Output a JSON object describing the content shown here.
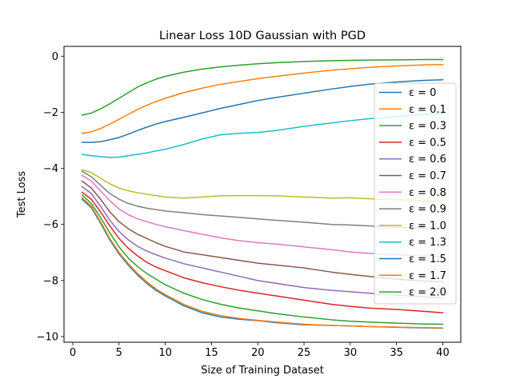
{
  "chart_data": {
    "type": "line",
    "title": "Linear Loss 10D Gaussian with PGD",
    "xlabel": "Size of Training Dataset",
    "ylabel": "Test Loss",
    "xlim": [
      -0.95,
      41.95
    ],
    "ylim": [
      -10.2,
      0.35
    ],
    "xticks": [
      0,
      5,
      10,
      15,
      20,
      25,
      30,
      35,
      40
    ],
    "xtick_labels": [
      "0",
      "5",
      "10",
      "15",
      "20",
      "25",
      "30",
      "35",
      "40"
    ],
    "yticks": [
      0,
      -2,
      -4,
      -6,
      -8,
      -10
    ],
    "ytick_labels": [
      "0",
      "−2",
      "−4",
      "−6",
      "−8",
      "−10"
    ],
    "grid": false,
    "legend_position": "right",
    "colors": [
      "#1f77b4",
      "#ff7f0e",
      "#2ca02c",
      "#d62728",
      "#9467bd",
      "#8c564b",
      "#e377c2",
      "#7f7f7f",
      "#bcbd22",
      "#17becf",
      "#1f77b4",
      "#ff7f0e",
      "#2ca02c"
    ],
    "series": [
      {
        "name": "ε = 0",
        "x": [
          1,
          2,
          3,
          4,
          5,
          6,
          7,
          8,
          9,
          10,
          12,
          14,
          16,
          18,
          20,
          22,
          25,
          28,
          30,
          32,
          35,
          38,
          40
        ],
        "y": [
          -5.1,
          -5.4,
          -5.95,
          -6.55,
          -7.05,
          -7.45,
          -7.8,
          -8.1,
          -8.35,
          -8.55,
          -8.9,
          -9.15,
          -9.3,
          -9.38,
          -9.43,
          -9.5,
          -9.58,
          -9.6,
          -9.62,
          -9.64,
          -9.67,
          -9.69,
          -9.7
        ]
      },
      {
        "name": "ε = 0.1",
        "x": [
          1,
          2,
          3,
          4,
          5,
          6,
          7,
          8,
          9,
          10,
          12,
          14,
          16,
          18,
          20,
          22,
          25,
          28,
          30,
          32,
          35,
          38,
          40
        ],
        "y": [
          -5.05,
          -5.35,
          -5.9,
          -6.5,
          -7.0,
          -7.4,
          -7.75,
          -8.05,
          -8.3,
          -8.5,
          -8.85,
          -9.1,
          -9.25,
          -9.35,
          -9.42,
          -9.48,
          -9.56,
          -9.6,
          -9.62,
          -9.64,
          -9.66,
          -9.68,
          -9.69
        ]
      },
      {
        "name": "ε = 0.3",
        "x": [
          1,
          2,
          3,
          4,
          5,
          6,
          7,
          8,
          9,
          10,
          12,
          14,
          16,
          18,
          20,
          22,
          25,
          28,
          30,
          32,
          35,
          38,
          40
        ],
        "y": [
          -4.95,
          -5.25,
          -5.75,
          -6.3,
          -6.8,
          -7.2,
          -7.5,
          -7.75,
          -7.95,
          -8.15,
          -8.45,
          -8.68,
          -8.85,
          -8.98,
          -9.08,
          -9.18,
          -9.3,
          -9.4,
          -9.45,
          -9.48,
          -9.52,
          -9.55,
          -9.56
        ]
      },
      {
        "name": "ε = 0.5",
        "x": [
          1,
          2,
          3,
          4,
          5,
          6,
          7,
          8,
          9,
          10,
          12,
          14,
          16,
          18,
          20,
          22,
          25,
          28,
          30,
          32,
          35,
          38,
          40
        ],
        "y": [
          -4.85,
          -5.1,
          -5.55,
          -6.05,
          -6.5,
          -6.85,
          -7.12,
          -7.35,
          -7.52,
          -7.65,
          -7.9,
          -8.08,
          -8.22,
          -8.35,
          -8.45,
          -8.55,
          -8.7,
          -8.85,
          -8.92,
          -8.98,
          -9.03,
          -9.1,
          -9.15
        ]
      },
      {
        "name": "ε = 0.6",
        "x": [
          1,
          2,
          3,
          4,
          5,
          6,
          7,
          8,
          9,
          10,
          12,
          14,
          16,
          18,
          20,
          22,
          25,
          28,
          30,
          32,
          35,
          38,
          40
        ],
        "y": [
          -4.65,
          -4.9,
          -5.35,
          -5.85,
          -6.25,
          -6.55,
          -6.78,
          -6.95,
          -7.08,
          -7.2,
          -7.4,
          -7.55,
          -7.7,
          -7.85,
          -8.0,
          -8.1,
          -8.25,
          -8.35,
          -8.4,
          -8.45,
          -8.52,
          -8.58,
          -8.62
        ]
      },
      {
        "name": "ε = 0.7",
        "x": [
          1,
          2,
          3,
          4,
          5,
          6,
          7,
          8,
          9,
          10,
          12,
          14,
          16,
          18,
          20,
          22,
          25,
          28,
          30,
          32,
          35,
          38,
          40
        ],
        "y": [
          -4.45,
          -4.7,
          -5.1,
          -5.55,
          -5.9,
          -6.15,
          -6.35,
          -6.5,
          -6.65,
          -6.78,
          -6.98,
          -7.08,
          -7.18,
          -7.28,
          -7.38,
          -7.45,
          -7.55,
          -7.7,
          -7.78,
          -7.85,
          -7.95,
          -8.02,
          -8.05
        ]
      },
      {
        "name": "ε = 0.8",
        "x": [
          1,
          2,
          3,
          4,
          5,
          6,
          7,
          8,
          9,
          10,
          12,
          14,
          16,
          18,
          20,
          22,
          25,
          28,
          30,
          32,
          35,
          38,
          40
        ],
        "y": [
          -4.25,
          -4.45,
          -4.8,
          -5.15,
          -5.45,
          -5.65,
          -5.8,
          -5.9,
          -6.0,
          -6.08,
          -6.22,
          -6.35,
          -6.48,
          -6.58,
          -6.65,
          -6.7,
          -6.8,
          -6.9,
          -6.98,
          -7.03,
          -7.08,
          -7.12,
          -7.15
        ]
      },
      {
        "name": "ε = 0.9",
        "x": [
          1,
          2,
          3,
          4,
          5,
          6,
          7,
          8,
          9,
          10,
          12,
          14,
          16,
          18,
          20,
          22,
          25,
          28,
          30,
          32,
          35,
          38,
          40
        ],
        "y": [
          -4.1,
          -4.3,
          -4.6,
          -4.9,
          -5.1,
          -5.25,
          -5.35,
          -5.42,
          -5.47,
          -5.52,
          -5.58,
          -5.65,
          -5.7,
          -5.75,
          -5.8,
          -5.85,
          -5.92,
          -6.0,
          -6.02,
          -6.05,
          -6.1,
          -6.13,
          -6.15
        ]
      },
      {
        "name": "ε = 1.0",
        "x": [
          1,
          2,
          3,
          4,
          5,
          6,
          7,
          8,
          9,
          10,
          12,
          14,
          16,
          18,
          20,
          22,
          25,
          28,
          30,
          32,
          35,
          38,
          40
        ],
        "y": [
          -4.05,
          -4.15,
          -4.35,
          -4.55,
          -4.7,
          -4.8,
          -4.87,
          -4.92,
          -4.97,
          -5.02,
          -5.06,
          -5.02,
          -4.98,
          -4.97,
          -4.97,
          -4.98,
          -5.02,
          -5.06,
          -5.05,
          -5.08,
          -5.12,
          -5.15,
          -5.17
        ]
      },
      {
        "name": "ε = 1.3",
        "x": [
          1,
          2,
          3,
          4,
          5,
          6,
          7,
          8,
          9,
          10,
          12,
          14,
          16,
          18,
          20,
          22,
          25,
          28,
          30,
          32,
          35,
          38,
          40
        ],
        "y": [
          -3.5,
          -3.55,
          -3.58,
          -3.61,
          -3.6,
          -3.55,
          -3.5,
          -3.45,
          -3.38,
          -3.32,
          -3.15,
          -2.95,
          -2.8,
          -2.75,
          -2.72,
          -2.65,
          -2.5,
          -2.38,
          -2.3,
          -2.23,
          -2.15,
          -2.08,
          -2.04
        ]
      },
      {
        "name": "ε = 1.5",
        "x": [
          1,
          2,
          3,
          4,
          5,
          6,
          7,
          8,
          9,
          10,
          12,
          14,
          16,
          18,
          20,
          22,
          25,
          28,
          30,
          32,
          35,
          38,
          40
        ],
        "y": [
          -3.07,
          -3.07,
          -3.05,
          -2.98,
          -2.9,
          -2.78,
          -2.65,
          -2.53,
          -2.42,
          -2.33,
          -2.18,
          -2.02,
          -1.86,
          -1.72,
          -1.58,
          -1.47,
          -1.32,
          -1.17,
          -1.08,
          -1.0,
          -0.92,
          -0.86,
          -0.84
        ]
      },
      {
        "name": "ε = 1.7",
        "x": [
          1,
          2,
          3,
          4,
          5,
          6,
          7,
          8,
          9,
          10,
          12,
          14,
          16,
          18,
          20,
          22,
          25,
          28,
          30,
          32,
          35,
          38,
          40
        ],
        "y": [
          -2.75,
          -2.7,
          -2.58,
          -2.42,
          -2.25,
          -2.07,
          -1.9,
          -1.75,
          -1.62,
          -1.5,
          -1.3,
          -1.14,
          -1.0,
          -0.9,
          -0.8,
          -0.72,
          -0.6,
          -0.5,
          -0.45,
          -0.4,
          -0.35,
          -0.31,
          -0.3
        ]
      },
      {
        "name": "ε = 2.0",
        "x": [
          1,
          2,
          3,
          4,
          5,
          6,
          7,
          8,
          9,
          10,
          12,
          14,
          16,
          18,
          20,
          22,
          25,
          28,
          30,
          32,
          35,
          38,
          40
        ],
        "y": [
          -2.1,
          -2.03,
          -1.88,
          -1.7,
          -1.5,
          -1.3,
          -1.1,
          -0.95,
          -0.82,
          -0.72,
          -0.57,
          -0.46,
          -0.38,
          -0.32,
          -0.27,
          -0.23,
          -0.19,
          -0.16,
          -0.15,
          -0.14,
          -0.13,
          -0.12,
          -0.12
        ]
      }
    ]
  }
}
